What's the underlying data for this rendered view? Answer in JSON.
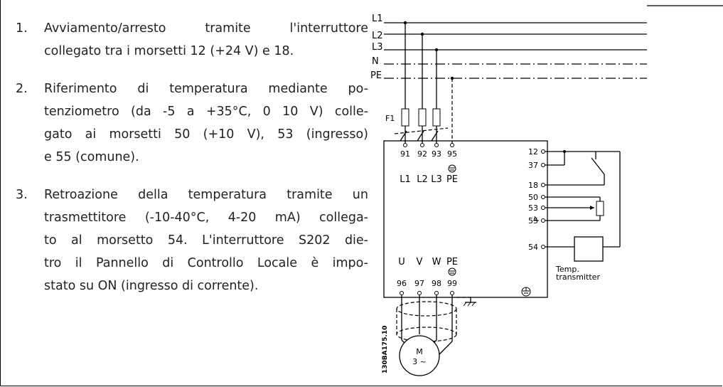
{
  "list": {
    "items": [
      {
        "number": "1.",
        "lines": [
          "Avviamento/arresto tramite l'interruttore",
          "collegato tra i morsetti 12 (+24 V) e 18."
        ]
      },
      {
        "number": "2.",
        "lines": [
          "Riferimento di temperatura mediante po-",
          "tenziometro (da -5 a +35°C, 0 10 V) colle-",
          "gato ai morsetti 50 (+10 V), 53 (ingresso)",
          "e 55 (comune)."
        ]
      },
      {
        "number": "3.",
        "lines": [
          "Retroazione della temperatura tramite un",
          "trasmettitore (-10-40°C, 4-20 mA) collega-",
          "to al morsetto 54. L'interruttore S202 die-",
          "tro il Pannello di Controllo Locale è impo-",
          "stato su ON (ingresso di corrente)."
        ]
      }
    ]
  },
  "diagram": {
    "bus_labels": [
      "L1",
      "L2",
      "L3",
      "N",
      "PE"
    ],
    "fuse_label": "F1",
    "input_terminals": [
      "91",
      "92",
      "93",
      "95"
    ],
    "input_names": [
      "L1",
      "L2",
      "L3",
      "PE"
    ],
    "output_names": [
      "U",
      "V",
      "W",
      "PE"
    ],
    "output_terminals": [
      "96",
      "97",
      "98",
      "99"
    ],
    "control_terminals": [
      "12",
      "37",
      "18",
      "50",
      "53",
      "55",
      "54"
    ],
    "transmitter_label": [
      "Temp.",
      "transmitter"
    ],
    "motor_label": [
      "M",
      "3 ~"
    ],
    "drawing_code": "130BA175.10"
  }
}
